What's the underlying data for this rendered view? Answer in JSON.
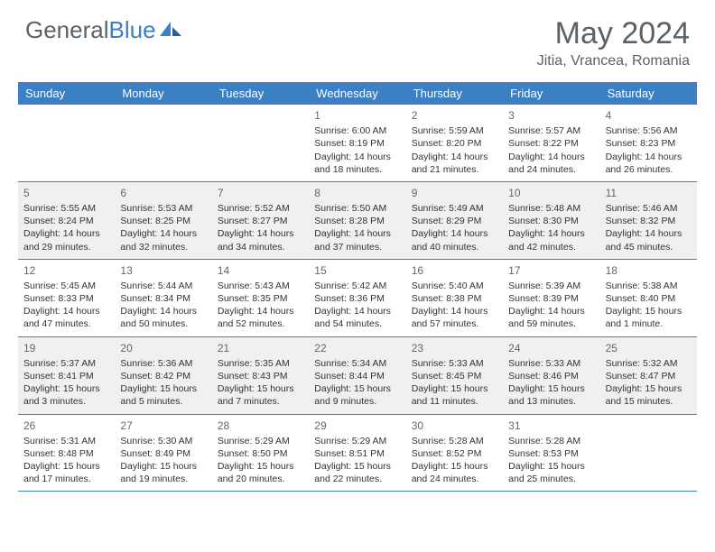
{
  "brand": {
    "part1": "General",
    "part2": "Blue"
  },
  "title": "May 2024",
  "location": "Jitia, Vrancea, Romania",
  "colors": {
    "header_bg": "#3b7fc4",
    "text_gray": "#5a6268",
    "alt_row": "#eef0f1",
    "border": "#3b7fc4"
  },
  "day_names": [
    "Sunday",
    "Monday",
    "Tuesday",
    "Wednesday",
    "Thursday",
    "Friday",
    "Saturday"
  ],
  "weeks": [
    {
      "alt": false,
      "cells": [
        {
          "day": "",
          "lines": []
        },
        {
          "day": "",
          "lines": []
        },
        {
          "day": "",
          "lines": []
        },
        {
          "day": "1",
          "lines": [
            "Sunrise: 6:00 AM",
            "Sunset: 8:19 PM",
            "Daylight: 14 hours",
            "and 18 minutes."
          ]
        },
        {
          "day": "2",
          "lines": [
            "Sunrise: 5:59 AM",
            "Sunset: 8:20 PM",
            "Daylight: 14 hours",
            "and 21 minutes."
          ]
        },
        {
          "day": "3",
          "lines": [
            "Sunrise: 5:57 AM",
            "Sunset: 8:22 PM",
            "Daylight: 14 hours",
            "and 24 minutes."
          ]
        },
        {
          "day": "4",
          "lines": [
            "Sunrise: 5:56 AM",
            "Sunset: 8:23 PM",
            "Daylight: 14 hours",
            "and 26 minutes."
          ]
        }
      ]
    },
    {
      "alt": true,
      "cells": [
        {
          "day": "5",
          "lines": [
            "Sunrise: 5:55 AM",
            "Sunset: 8:24 PM",
            "Daylight: 14 hours",
            "and 29 minutes."
          ]
        },
        {
          "day": "6",
          "lines": [
            "Sunrise: 5:53 AM",
            "Sunset: 8:25 PM",
            "Daylight: 14 hours",
            "and 32 minutes."
          ]
        },
        {
          "day": "7",
          "lines": [
            "Sunrise: 5:52 AM",
            "Sunset: 8:27 PM",
            "Daylight: 14 hours",
            "and 34 minutes."
          ]
        },
        {
          "day": "8",
          "lines": [
            "Sunrise: 5:50 AM",
            "Sunset: 8:28 PM",
            "Daylight: 14 hours",
            "and 37 minutes."
          ]
        },
        {
          "day": "9",
          "lines": [
            "Sunrise: 5:49 AM",
            "Sunset: 8:29 PM",
            "Daylight: 14 hours",
            "and 40 minutes."
          ]
        },
        {
          "day": "10",
          "lines": [
            "Sunrise: 5:48 AM",
            "Sunset: 8:30 PM",
            "Daylight: 14 hours",
            "and 42 minutes."
          ]
        },
        {
          "day": "11",
          "lines": [
            "Sunrise: 5:46 AM",
            "Sunset: 8:32 PM",
            "Daylight: 14 hours",
            "and 45 minutes."
          ]
        }
      ]
    },
    {
      "alt": false,
      "cells": [
        {
          "day": "12",
          "lines": [
            "Sunrise: 5:45 AM",
            "Sunset: 8:33 PM",
            "Daylight: 14 hours",
            "and 47 minutes."
          ]
        },
        {
          "day": "13",
          "lines": [
            "Sunrise: 5:44 AM",
            "Sunset: 8:34 PM",
            "Daylight: 14 hours",
            "and 50 minutes."
          ]
        },
        {
          "day": "14",
          "lines": [
            "Sunrise: 5:43 AM",
            "Sunset: 8:35 PM",
            "Daylight: 14 hours",
            "and 52 minutes."
          ]
        },
        {
          "day": "15",
          "lines": [
            "Sunrise: 5:42 AM",
            "Sunset: 8:36 PM",
            "Daylight: 14 hours",
            "and 54 minutes."
          ]
        },
        {
          "day": "16",
          "lines": [
            "Sunrise: 5:40 AM",
            "Sunset: 8:38 PM",
            "Daylight: 14 hours",
            "and 57 minutes."
          ]
        },
        {
          "day": "17",
          "lines": [
            "Sunrise: 5:39 AM",
            "Sunset: 8:39 PM",
            "Daylight: 14 hours",
            "and 59 minutes."
          ]
        },
        {
          "day": "18",
          "lines": [
            "Sunrise: 5:38 AM",
            "Sunset: 8:40 PM",
            "Daylight: 15 hours",
            "and 1 minute."
          ]
        }
      ]
    },
    {
      "alt": true,
      "cells": [
        {
          "day": "19",
          "lines": [
            "Sunrise: 5:37 AM",
            "Sunset: 8:41 PM",
            "Daylight: 15 hours",
            "and 3 minutes."
          ]
        },
        {
          "day": "20",
          "lines": [
            "Sunrise: 5:36 AM",
            "Sunset: 8:42 PM",
            "Daylight: 15 hours",
            "and 5 minutes."
          ]
        },
        {
          "day": "21",
          "lines": [
            "Sunrise: 5:35 AM",
            "Sunset: 8:43 PM",
            "Daylight: 15 hours",
            "and 7 minutes."
          ]
        },
        {
          "day": "22",
          "lines": [
            "Sunrise: 5:34 AM",
            "Sunset: 8:44 PM",
            "Daylight: 15 hours",
            "and 9 minutes."
          ]
        },
        {
          "day": "23",
          "lines": [
            "Sunrise: 5:33 AM",
            "Sunset: 8:45 PM",
            "Daylight: 15 hours",
            "and 11 minutes."
          ]
        },
        {
          "day": "24",
          "lines": [
            "Sunrise: 5:33 AM",
            "Sunset: 8:46 PM",
            "Daylight: 15 hours",
            "and 13 minutes."
          ]
        },
        {
          "day": "25",
          "lines": [
            "Sunrise: 5:32 AM",
            "Sunset: 8:47 PM",
            "Daylight: 15 hours",
            "and 15 minutes."
          ]
        }
      ]
    },
    {
      "alt": false,
      "cells": [
        {
          "day": "26",
          "lines": [
            "Sunrise: 5:31 AM",
            "Sunset: 8:48 PM",
            "Daylight: 15 hours",
            "and 17 minutes."
          ]
        },
        {
          "day": "27",
          "lines": [
            "Sunrise: 5:30 AM",
            "Sunset: 8:49 PM",
            "Daylight: 15 hours",
            "and 19 minutes."
          ]
        },
        {
          "day": "28",
          "lines": [
            "Sunrise: 5:29 AM",
            "Sunset: 8:50 PM",
            "Daylight: 15 hours",
            "and 20 minutes."
          ]
        },
        {
          "day": "29",
          "lines": [
            "Sunrise: 5:29 AM",
            "Sunset: 8:51 PM",
            "Daylight: 15 hours",
            "and 22 minutes."
          ]
        },
        {
          "day": "30",
          "lines": [
            "Sunrise: 5:28 AM",
            "Sunset: 8:52 PM",
            "Daylight: 15 hours",
            "and 24 minutes."
          ]
        },
        {
          "day": "31",
          "lines": [
            "Sunrise: 5:28 AM",
            "Sunset: 8:53 PM",
            "Daylight: 15 hours",
            "and 25 minutes."
          ]
        },
        {
          "day": "",
          "lines": []
        }
      ]
    }
  ]
}
